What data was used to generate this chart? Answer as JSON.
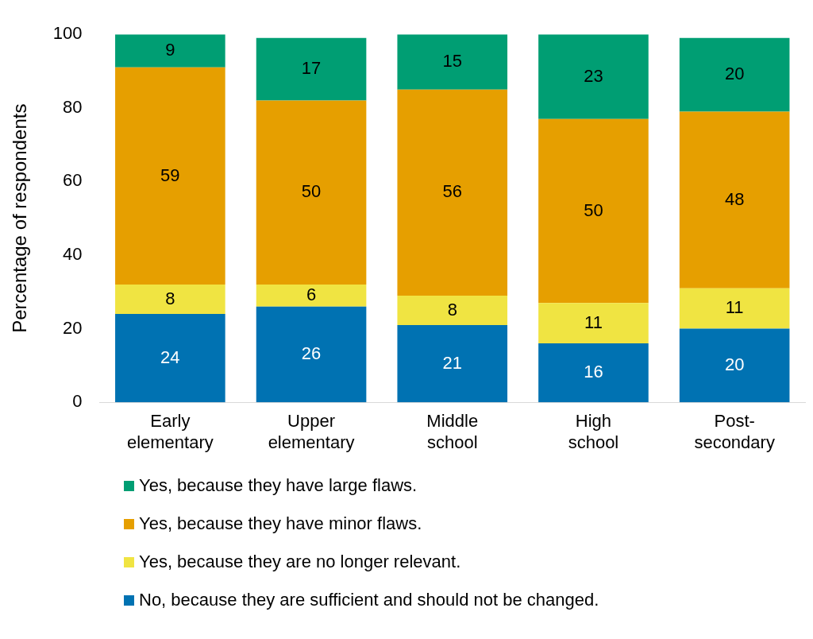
{
  "chart_data": {
    "type": "bar",
    "stacked": true,
    "ylabel": "Percentage of respondents",
    "categories": [
      "Early elementary",
      "Upper elementary",
      "Middle school",
      "High school",
      "Post-secondary"
    ],
    "series": [
      {
        "name": "No, because they are sufficient and should not be changed.",
        "color": "#0072b2",
        "values": [
          24,
          26,
          21,
          16,
          20
        ]
      },
      {
        "name": "Yes, because they are no longer relevant.",
        "color": "#f0e442",
        "values": [
          8,
          6,
          8,
          11,
          11
        ]
      },
      {
        "name": "Yes, because they have minor flaws.",
        "color": "#e69f00",
        "values": [
          59,
          50,
          56,
          50,
          48
        ]
      },
      {
        "name": "Yes, because they have large flaws.",
        "color": "#009e73",
        "values": [
          9,
          17,
          15,
          23,
          20
        ]
      }
    ],
    "ylim": [
      0,
      100
    ],
    "yticks": [
      0,
      20,
      40,
      60,
      80,
      100
    ],
    "grid": false,
    "legend": "bottom",
    "data_labels": true
  }
}
